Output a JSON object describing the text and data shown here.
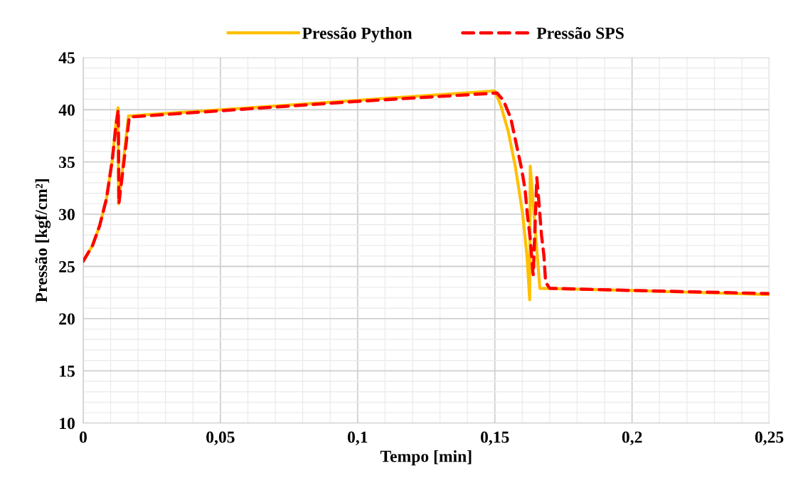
{
  "chart_data": {
    "type": "line",
    "xlabel": "Tempo [min]",
    "ylabel": "Pressão [kgf/cm²]",
    "xlim": [
      0,
      0.25
    ],
    "ylim": [
      10,
      45
    ],
    "xticks": [
      {
        "value": 0,
        "label": "0"
      },
      {
        "value": 0.05,
        "label": "0,05"
      },
      {
        "value": 0.1,
        "label": "0,1"
      },
      {
        "value": 0.15,
        "label": "0,15"
      },
      {
        "value": 0.2,
        "label": "0,2"
      },
      {
        "value": 0.25,
        "label": "0,25"
      }
    ],
    "yticks": [
      10,
      15,
      20,
      25,
      30,
      35,
      40,
      45
    ],
    "grid": true,
    "legend": "top",
    "marker": "none",
    "series": [
      {
        "name": "Pressão Python",
        "color": "#ffc000",
        "line_style": "solid",
        "x": [
          0,
          0.0034,
          0.006,
          0.0085,
          0.0106,
          0.0119,
          0.0127,
          0.0129,
          0.0165,
          0.05,
          0.1,
          0.15,
          0.1523,
          0.1549,
          0.1575,
          0.1601,
          0.1617,
          0.1627,
          0.1629,
          0.1664,
          0.2,
          0.25
        ],
        "values": [
          25.5,
          27.0,
          28.9,
          31.5,
          35.2,
          38.6,
          40.2,
          31.0,
          39.4,
          40.0,
          40.9,
          41.8,
          40.3,
          37.9,
          34.5,
          30.1,
          26.0,
          21.8,
          34.6,
          22.9,
          22.7,
          22.3
        ]
      },
      {
        "name": "Pressão SPS",
        "color": "#ff0000",
        "line_style": "dashed",
        "x": [
          0,
          0.0034,
          0.006,
          0.0085,
          0.0106,
          0.0119,
          0.0128,
          0.013,
          0.0168,
          0.05,
          0.1,
          0.1508,
          0.1531,
          0.1558,
          0.1571,
          0.1584,
          0.1597,
          0.161,
          0.1618,
          0.163,
          0.1638,
          0.164,
          0.1653,
          0.1661,
          0.167,
          0.1679,
          0.1685,
          0.17,
          0.2,
          0.25
        ],
        "values": [
          25.5,
          27.0,
          28.9,
          31.5,
          35.2,
          38.4,
          40.0,
          31.0,
          39.3,
          39.9,
          40.8,
          41.6,
          40.9,
          39.2,
          37.6,
          36.0,
          34.4,
          32.4,
          30.1,
          27.4,
          24.6,
          24.2,
          33.5,
          31.0,
          28.0,
          26.0,
          23.5,
          22.9,
          22.7,
          22.4
        ]
      }
    ]
  }
}
